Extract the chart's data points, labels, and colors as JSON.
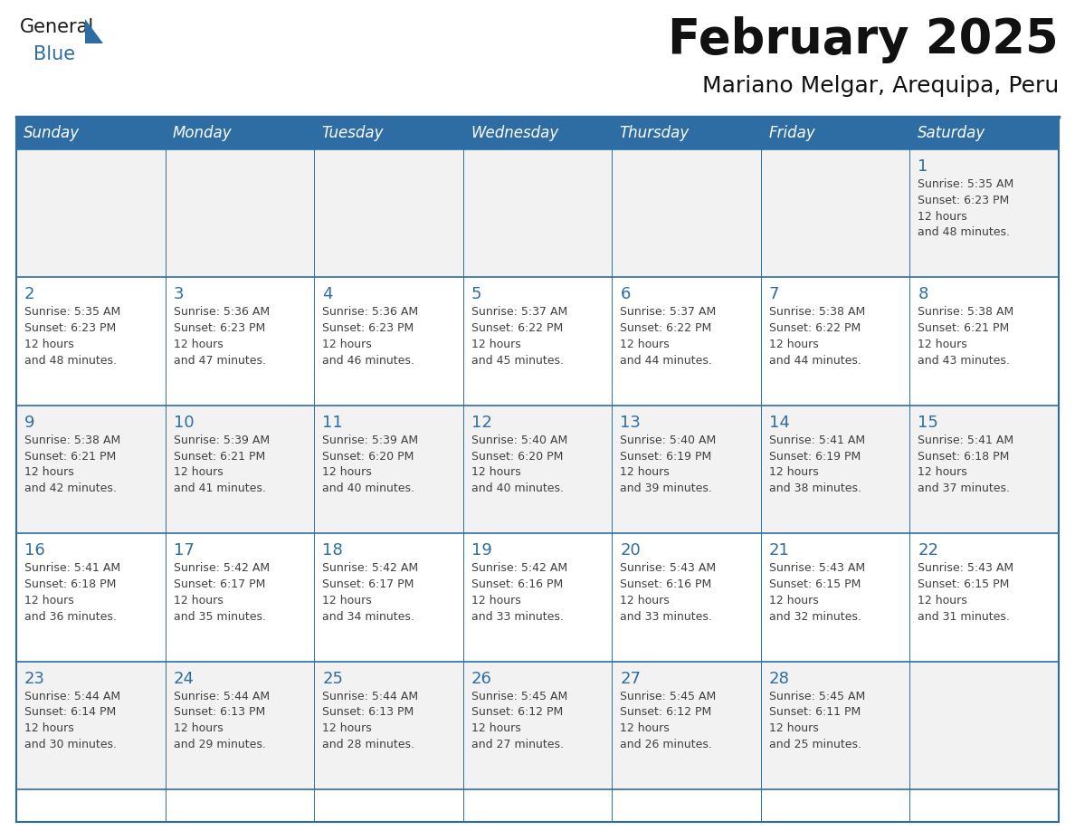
{
  "title": "February 2025",
  "subtitle": "Mariano Melgar, Arequipa, Peru",
  "header_bg": "#2E6DA4",
  "header_text": "#FFFFFF",
  "cell_bg_odd": "#F2F2F2",
  "cell_bg_even": "#FFFFFF",
  "day_number_color": "#2E6DA4",
  "info_text_color": "#404040",
  "border_color": "#2E6DA4",
  "border_color_light": "#7BA7CC",
  "days_of_week": [
    "Sunday",
    "Monday",
    "Tuesday",
    "Wednesday",
    "Thursday",
    "Friday",
    "Saturday"
  ],
  "calendar_data": [
    [
      null,
      null,
      null,
      null,
      null,
      null,
      {
        "day": 1,
        "sunrise": "5:35 AM",
        "sunset": "6:23 PM",
        "daylight": "12 hours",
        "daylight2": "and 48 minutes."
      }
    ],
    [
      {
        "day": 2,
        "sunrise": "5:35 AM",
        "sunset": "6:23 PM",
        "daylight": "12 hours",
        "daylight2": "and 48 minutes."
      },
      {
        "day": 3,
        "sunrise": "5:36 AM",
        "sunset": "6:23 PM",
        "daylight": "12 hours",
        "daylight2": "and 47 minutes."
      },
      {
        "day": 4,
        "sunrise": "5:36 AM",
        "sunset": "6:23 PM",
        "daylight": "12 hours",
        "daylight2": "and 46 minutes."
      },
      {
        "day": 5,
        "sunrise": "5:37 AM",
        "sunset": "6:22 PM",
        "daylight": "12 hours",
        "daylight2": "and 45 minutes."
      },
      {
        "day": 6,
        "sunrise": "5:37 AM",
        "sunset": "6:22 PM",
        "daylight": "12 hours",
        "daylight2": "and 44 minutes."
      },
      {
        "day": 7,
        "sunrise": "5:38 AM",
        "sunset": "6:22 PM",
        "daylight": "12 hours",
        "daylight2": "and 44 minutes."
      },
      {
        "day": 8,
        "sunrise": "5:38 AM",
        "sunset": "6:21 PM",
        "daylight": "12 hours",
        "daylight2": "and 43 minutes."
      }
    ],
    [
      {
        "day": 9,
        "sunrise": "5:38 AM",
        "sunset": "6:21 PM",
        "daylight": "12 hours",
        "daylight2": "and 42 minutes."
      },
      {
        "day": 10,
        "sunrise": "5:39 AM",
        "sunset": "6:21 PM",
        "daylight": "12 hours",
        "daylight2": "and 41 minutes."
      },
      {
        "day": 11,
        "sunrise": "5:39 AM",
        "sunset": "6:20 PM",
        "daylight": "12 hours",
        "daylight2": "and 40 minutes."
      },
      {
        "day": 12,
        "sunrise": "5:40 AM",
        "sunset": "6:20 PM",
        "daylight": "12 hours",
        "daylight2": "and 40 minutes."
      },
      {
        "day": 13,
        "sunrise": "5:40 AM",
        "sunset": "6:19 PM",
        "daylight": "12 hours",
        "daylight2": "and 39 minutes."
      },
      {
        "day": 14,
        "sunrise": "5:41 AM",
        "sunset": "6:19 PM",
        "daylight": "12 hours",
        "daylight2": "and 38 minutes."
      },
      {
        "day": 15,
        "sunrise": "5:41 AM",
        "sunset": "6:18 PM",
        "daylight": "12 hours",
        "daylight2": "and 37 minutes."
      }
    ],
    [
      {
        "day": 16,
        "sunrise": "5:41 AM",
        "sunset": "6:18 PM",
        "daylight": "12 hours",
        "daylight2": "and 36 minutes."
      },
      {
        "day": 17,
        "sunrise": "5:42 AM",
        "sunset": "6:17 PM",
        "daylight": "12 hours",
        "daylight2": "and 35 minutes."
      },
      {
        "day": 18,
        "sunrise": "5:42 AM",
        "sunset": "6:17 PM",
        "daylight": "12 hours",
        "daylight2": "and 34 minutes."
      },
      {
        "day": 19,
        "sunrise": "5:42 AM",
        "sunset": "6:16 PM",
        "daylight": "12 hours",
        "daylight2": "and 33 minutes."
      },
      {
        "day": 20,
        "sunrise": "5:43 AM",
        "sunset": "6:16 PM",
        "daylight": "12 hours",
        "daylight2": "and 33 minutes."
      },
      {
        "day": 21,
        "sunrise": "5:43 AM",
        "sunset": "6:15 PM",
        "daylight": "12 hours",
        "daylight2": "and 32 minutes."
      },
      {
        "day": 22,
        "sunrise": "5:43 AM",
        "sunset": "6:15 PM",
        "daylight": "12 hours",
        "daylight2": "and 31 minutes."
      }
    ],
    [
      {
        "day": 23,
        "sunrise": "5:44 AM",
        "sunset": "6:14 PM",
        "daylight": "12 hours",
        "daylight2": "and 30 minutes."
      },
      {
        "day": 24,
        "sunrise": "5:44 AM",
        "sunset": "6:13 PM",
        "daylight": "12 hours",
        "daylight2": "and 29 minutes."
      },
      {
        "day": 25,
        "sunrise": "5:44 AM",
        "sunset": "6:13 PM",
        "daylight": "12 hours",
        "daylight2": "and 28 minutes."
      },
      {
        "day": 26,
        "sunrise": "5:45 AM",
        "sunset": "6:12 PM",
        "daylight": "12 hours",
        "daylight2": "and 27 minutes."
      },
      {
        "day": 27,
        "sunrise": "5:45 AM",
        "sunset": "6:12 PM",
        "daylight": "12 hours",
        "daylight2": "and 26 minutes."
      },
      {
        "day": 28,
        "sunrise": "5:45 AM",
        "sunset": "6:11 PM",
        "daylight": "12 hours",
        "daylight2": "and 25 minutes."
      },
      null
    ]
  ],
  "logo_text_general": "General",
  "logo_text_blue": "Blue",
  "logo_color_general": "#1A1A1A",
  "logo_color_blue": "#2E6DA4",
  "logo_triangle_color": "#2E6DA4",
  "title_fontsize": 38,
  "subtitle_fontsize": 18,
  "header_fontsize": 12,
  "day_num_fontsize": 13,
  "info_fontsize": 9
}
